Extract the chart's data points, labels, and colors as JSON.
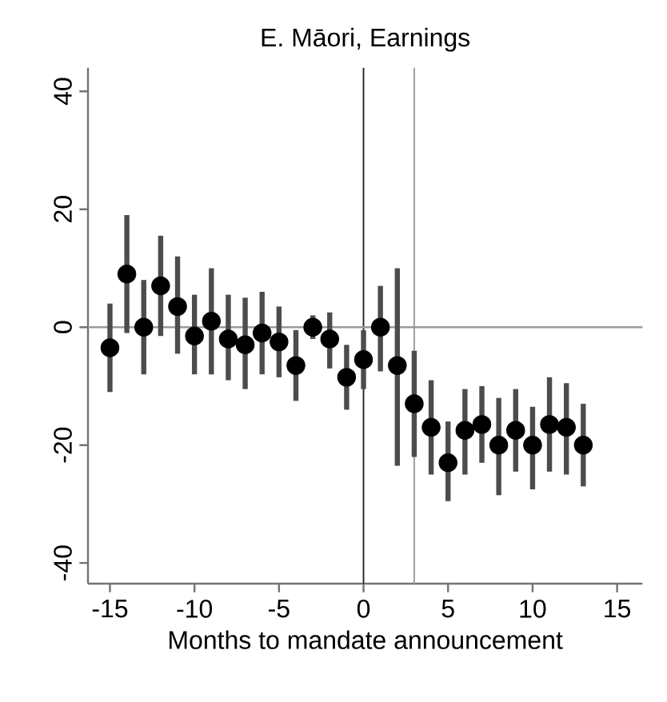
{
  "chart_data": {
    "type": "scatter",
    "title": "E. Māori, Earnings",
    "xlabel": "Months to mandate announcement",
    "xlim": [
      -16.3,
      16.5
    ],
    "ylim": [
      -43.5,
      44
    ],
    "xticks": [
      -15,
      -10,
      -5,
      0,
      5,
      10,
      15
    ],
    "yticks": [
      -40,
      -20,
      0,
      20,
      40
    ],
    "grid": false,
    "marker": "circle",
    "ref_lines": [
      {
        "axis": "x",
        "value": 0,
        "color": "#222222"
      },
      {
        "axis": "x",
        "value": 3,
        "color": "#9a9a9a"
      },
      {
        "axis": "y",
        "value": 0,
        "color": "#9a9a9a"
      }
    ],
    "series": [
      {
        "color": "#000000",
        "x": [
          -15,
          -14,
          -13,
          -12,
          -11,
          -10,
          -9,
          -8,
          -7,
          -6,
          -5,
          -4,
          -3,
          -2,
          -1,
          0,
          1,
          2,
          3,
          4,
          5,
          6,
          7,
          8,
          9,
          10,
          11,
          12,
          13
        ],
        "values": [
          -3.5,
          9,
          0,
          7,
          3.5,
          -1.5,
          1,
          -2,
          -3,
          -1,
          -2.5,
          -6.5,
          0,
          -2,
          -8.5,
          -5.5,
          0,
          -6.5,
          -13,
          -17,
          -23,
          -17.5,
          -16.5,
          -20,
          -17.5,
          -20,
          -16.5,
          -17,
          -20
        ],
        "errors": [
          [
            -11,
            4
          ],
          [
            -1,
            19
          ],
          [
            -8,
            8
          ],
          [
            -1.5,
            15.5
          ],
          [
            -4.5,
            12
          ],
          [
            -8,
            5.5
          ],
          [
            -8,
            10
          ],
          [
            -9,
            5.5
          ],
          [
            -10.5,
            5
          ],
          [
            -8,
            6
          ],
          [
            -8.5,
            3.5
          ],
          [
            -12.5,
            -0.5
          ],
          [
            -2,
            2
          ],
          [
            -7,
            2.5
          ],
          [
            -14,
            -3
          ],
          [
            -10.5,
            -0.5
          ],
          [
            -7.5,
            7
          ],
          [
            -23.5,
            10
          ],
          [
            -22,
            -4
          ],
          [
            -25,
            -9
          ],
          [
            -29.5,
            -16
          ],
          [
            -25,
            -10.5
          ],
          [
            -23,
            -10
          ],
          [
            -28.5,
            -12
          ],
          [
            -24.5,
            -10.5
          ],
          [
            -27.5,
            -13.5
          ],
          [
            -24.5,
            -8.5
          ],
          [
            -25,
            -9.5
          ],
          [
            -27,
            -13
          ]
        ]
      }
    ]
  }
}
